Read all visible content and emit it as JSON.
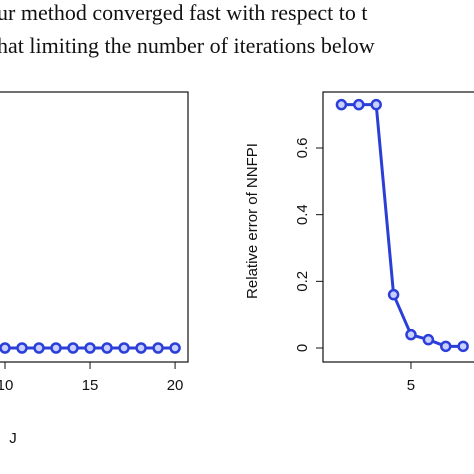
{
  "paragraph": [
    "ur method converged fast with respect to t",
    "hat limiting the number of iterations below"
  ],
  "chart_data": [
    {
      "type": "line",
      "xlabel": "J",
      "x": [
        10,
        11,
        12,
        13,
        14,
        15,
        16,
        17,
        18,
        19,
        20
      ],
      "series": [
        {
          "color": "#2b3fd8",
          "values": [
            0,
            0,
            0,
            0,
            0,
            0,
            0,
            0,
            0,
            0,
            0
          ]
        }
      ],
      "xlim": [
        0.24,
        20.76
      ],
      "xticks": [
        10,
        15,
        20
      ],
      "ylim": [
        -0.042,
        0.768
      ]
    },
    {
      "type": "line",
      "ylabel": "Relative error of NNFPI",
      "x": [
        1,
        2,
        3,
        4,
        5,
        6,
        7,
        8
      ],
      "series": [
        {
          "color": "#2b3fd8",
          "values": [
            0.73,
            0.73,
            0.73,
            0.16,
            0.04,
            0.025,
            0.005,
            0.005
          ]
        }
      ],
      "xlim": [
        -0.06,
        20.76
      ],
      "xticks": [
        5
      ],
      "ylim": [
        -0.042,
        0.768
      ],
      "yticks": [
        0,
        0.2,
        0.4,
        0.6
      ]
    }
  ]
}
